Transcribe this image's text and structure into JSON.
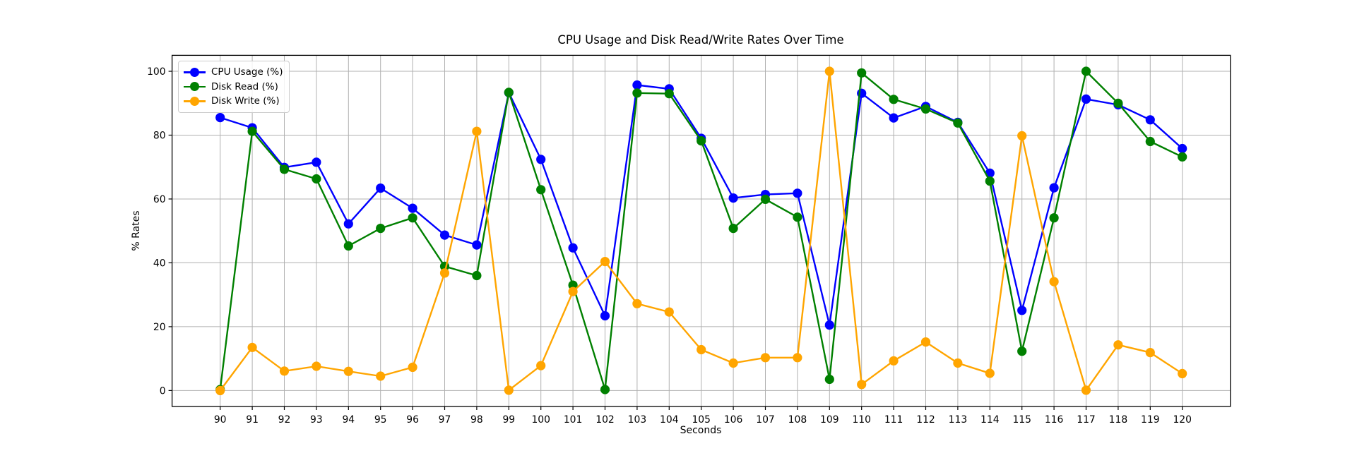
{
  "chart_data": {
    "type": "line",
    "title": "CPU Usage and Disk Read/Write Rates Over Time",
    "xlabel": "Seconds",
    "ylabel": "% Rates",
    "x": [
      90,
      91,
      92,
      93,
      94,
      95,
      96,
      97,
      98,
      99,
      100,
      101,
      102,
      103,
      104,
      105,
      106,
      107,
      108,
      109,
      110,
      111,
      112,
      113,
      114,
      115,
      116,
      117,
      118,
      119,
      120
    ],
    "series": [
      {
        "name": "CPU Usage (%)",
        "color": "#0000ff",
        "values": [
          85.5,
          82.3,
          69.9,
          71.5,
          52.2,
          63.4,
          57.1,
          48.7,
          45.6,
          93.3,
          72.4,
          44.7,
          23.4,
          95.7,
          94.5,
          79.0,
          60.3,
          61.4,
          61.8,
          20.5,
          93.1,
          85.4,
          89.0,
          84.0,
          68.1,
          25.1,
          63.5,
          91.3,
          89.5,
          84.8,
          75.8
        ]
      },
      {
        "name": "Disk Read (%)",
        "color": "#008000",
        "values": [
          0.3,
          81.2,
          69.3,
          66.3,
          45.3,
          50.8,
          54.1,
          38.9,
          36.0,
          93.4,
          62.9,
          33.0,
          0.3,
          93.2,
          93.0,
          78.2,
          50.8,
          59.9,
          54.3,
          3.5,
          99.5,
          91.2,
          88.2,
          83.8,
          65.6,
          12.3,
          54.1,
          100.0,
          90.0,
          78.0,
          73.2
        ]
      },
      {
        "name": "Disk Write (%)",
        "color": "#ffa500",
        "values": [
          0.0,
          13.5,
          6.1,
          7.6,
          6.0,
          4.5,
          7.3,
          36.8,
          81.2,
          0.1,
          7.8,
          31.0,
          40.4,
          27.2,
          24.6,
          12.8,
          8.6,
          10.3,
          10.3,
          100.0,
          1.9,
          9.3,
          15.2,
          8.6,
          5.4,
          79.8,
          34.1,
          0.1,
          14.3,
          11.9,
          5.3
        ]
      }
    ],
    "xlim": [
      88.5,
      121.5
    ],
    "ylim": [
      -5,
      105
    ],
    "x_ticks": [
      90,
      91,
      92,
      93,
      94,
      95,
      96,
      97,
      98,
      99,
      100,
      101,
      102,
      103,
      104,
      105,
      106,
      107,
      108,
      109,
      110,
      111,
      112,
      113,
      114,
      115,
      116,
      117,
      118,
      119,
      120
    ],
    "y_ticks": [
      0,
      20,
      40,
      60,
      80,
      100
    ],
    "grid": true,
    "legend_position": "upper left",
    "marker": "o"
  },
  "colors": {
    "grid": "#b0b0b0",
    "spine": "#000000",
    "background": "#ffffff",
    "legend_border": "#cccccc"
  }
}
